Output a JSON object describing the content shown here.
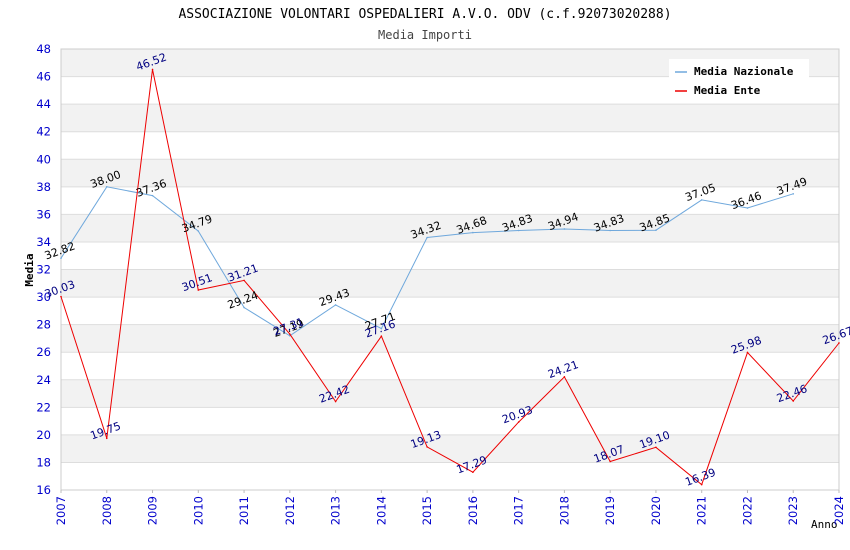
{
  "chart_data": {
    "type": "line",
    "title": "ASSOCIAZIONE VOLONTARI OSPEDALIERI A.V.O. ODV (c.f.92073020288)",
    "subtitle": "Media Importi",
    "xlabel": "Anno",
    "ylabel": "Media",
    "ylim": [
      16,
      48
    ],
    "yticks": [
      "16",
      "18",
      "20",
      "22",
      "24",
      "26",
      "28",
      "30",
      "32",
      "34",
      "36",
      "38",
      "40",
      "42",
      "44",
      "46",
      "48"
    ],
    "categories": [
      "2007",
      "2008",
      "2009",
      "2010",
      "2011",
      "2012",
      "2013",
      "2014",
      "2015",
      "2016",
      "2017",
      "2018",
      "2019",
      "2020",
      "2021",
      "2022",
      "2023",
      "2024"
    ],
    "legend_position": "top-right",
    "series": [
      {
        "name": "Media Nazionale",
        "color": "#6fa8dc",
        "label_color": "#000000",
        "values": [
          32.82,
          38.0,
          37.36,
          34.79,
          29.24,
          27.19,
          29.43,
          27.71,
          34.32,
          34.68,
          34.83,
          34.94,
          34.83,
          34.85,
          37.05,
          36.46,
          37.49,
          null
        ],
        "labels": [
          "32.82",
          "38.00",
          "37.36",
          "34.79",
          "29.24",
          "27.19",
          "29.43",
          "27.71",
          "34.32",
          "34.68",
          "34.83",
          "34.94",
          "34.83",
          "34.85",
          "37.05",
          "36.46",
          "37.49",
          ""
        ]
      },
      {
        "name": "Media Ente",
        "color": "#ee0000",
        "label_color": "#000080",
        "values": [
          30.03,
          19.75,
          46.52,
          30.51,
          31.21,
          27.31,
          22.42,
          27.16,
          19.13,
          17.29,
          20.93,
          24.21,
          18.07,
          19.1,
          16.39,
          25.98,
          22.46,
          26.67
        ],
        "labels": [
          "30.03",
          "19.75",
          "46.52",
          "30.51",
          "31.21",
          "27.31",
          "22.42",
          "27.16",
          "19.13",
          "17.29",
          "20.93",
          "24.21",
          "18.07",
          "19.10",
          "16.39",
          "25.98",
          "22.46",
          "26.67"
        ]
      }
    ]
  }
}
